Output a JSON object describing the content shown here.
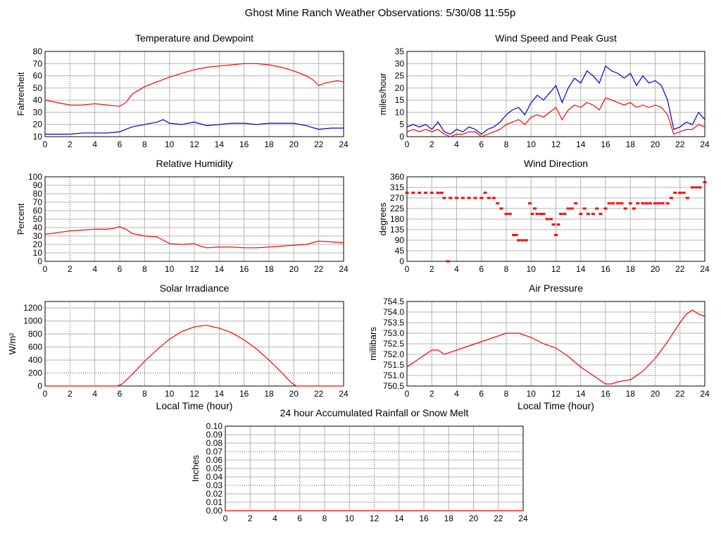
{
  "page": {
    "title": "Ghost Mine Ranch Weather Observations: 5/30/08 11:55p"
  },
  "chart_data": [
    {
      "id": "temp",
      "type": "line",
      "title": "Temperature and Dewpoint",
      "ylabel": "Fahrenheit",
      "xlabel": "",
      "xlim": [
        0,
        24
      ],
      "ylim": [
        10,
        80
      ],
      "xticks": [
        0,
        2,
        4,
        6,
        8,
        10,
        12,
        14,
        16,
        18,
        20,
        22,
        24
      ],
      "yticks": [
        10,
        20,
        30,
        40,
        50,
        60,
        70,
        80
      ],
      "grid": true,
      "series": [
        {
          "color": "#ff0000",
          "x": [
            0,
            1,
            2,
            3,
            4,
            5,
            6,
            6.5,
            7,
            7.5,
            8,
            9,
            10,
            11,
            12,
            13,
            14,
            15,
            16,
            17,
            18,
            19,
            20,
            21,
            21.5,
            22,
            22.5,
            23,
            23.5,
            24
          ],
          "y": [
            40,
            38,
            36,
            36,
            37,
            36,
            35,
            38,
            45,
            48,
            51,
            55,
            59,
            62,
            65,
            67,
            68,
            69,
            70,
            70,
            69,
            67,
            64,
            60,
            57,
            52,
            54,
            55,
            56,
            55
          ]
        },
        {
          "color": "#0000cc",
          "x": [
            0,
            1,
            2,
            3,
            4,
            5,
            6,
            6.5,
            7,
            8,
            9,
            9.5,
            10,
            11,
            12,
            13,
            14,
            15,
            16,
            17,
            18,
            19,
            20,
            21,
            22,
            23,
            24
          ],
          "y": [
            12,
            12,
            12,
            13,
            13,
            13,
            14,
            16,
            18,
            20,
            22,
            24,
            21,
            20,
            22,
            19,
            20,
            21,
            21,
            20,
            21,
            21,
            21,
            19,
            16,
            17,
            17
          ]
        }
      ]
    },
    {
      "id": "wind",
      "type": "line",
      "title": "Wind Speed and Peak Gust",
      "ylabel": "miles/hour",
      "xlabel": "",
      "xlim": [
        0,
        24
      ],
      "ylim": [
        0,
        35
      ],
      "xticks": [
        0,
        2,
        4,
        6,
        8,
        10,
        12,
        14,
        16,
        18,
        20,
        22,
        24
      ],
      "yticks": [
        0,
        5,
        10,
        15,
        20,
        25,
        30,
        35
      ],
      "grid": true,
      "series": [
        {
          "color": "#0000cc",
          "x": [
            0,
            0.5,
            1,
            1.5,
            2,
            2.5,
            3,
            3.5,
            4,
            4.5,
            5,
            5.5,
            6,
            6.5,
            7,
            7.5,
            8,
            8.5,
            9,
            9.5,
            10,
            10.5,
            11,
            11.5,
            12,
            12.5,
            13,
            13.5,
            14,
            14.5,
            15,
            15.5,
            16,
            16.5,
            17,
            17.5,
            18,
            18.5,
            19,
            19.5,
            20,
            20.5,
            21,
            21.5,
            22,
            22.5,
            23,
            23.5,
            24
          ],
          "y": [
            4,
            5,
            4,
            5,
            3,
            6,
            2,
            1,
            3,
            2,
            4,
            3,
            1,
            3,
            4,
            6,
            9,
            11,
            12,
            9,
            14,
            17,
            15,
            18,
            21,
            14,
            20,
            24,
            22,
            27,
            25,
            22,
            29,
            27,
            26,
            24,
            26,
            21,
            25,
            22,
            23,
            21,
            15,
            3,
            4,
            6,
            5,
            10,
            7
          ]
        },
        {
          "color": "#ff0000",
          "x": [
            0,
            0.5,
            1,
            1.5,
            2,
            2.5,
            3,
            3.5,
            4,
            4.5,
            5,
            5.5,
            6,
            6.5,
            7,
            7.5,
            8,
            8.5,
            9,
            9.5,
            10,
            10.5,
            11,
            11.5,
            12,
            12.5,
            13,
            13.5,
            14,
            14.5,
            15,
            15.5,
            16,
            16.5,
            17,
            17.5,
            18,
            18.5,
            19,
            19.5,
            20,
            20.5,
            21,
            21.5,
            22,
            22.5,
            23,
            23.5,
            24
          ],
          "y": [
            2,
            3,
            2,
            3,
            2,
            3,
            1,
            0,
            1,
            1,
            2,
            2,
            0,
            1,
            2,
            3,
            5,
            6,
            7,
            5,
            8,
            9,
            8,
            10,
            12,
            7,
            11,
            13,
            12,
            14,
            13,
            11,
            16,
            15,
            14,
            13,
            14,
            12,
            13,
            12,
            13,
            12,
            9,
            1,
            2,
            3,
            3,
            5,
            4
          ]
        }
      ]
    },
    {
      "id": "rh",
      "type": "line",
      "title": "Relative Humidity",
      "ylabel": "Percent",
      "xlabel": "",
      "xlim": [
        0,
        24
      ],
      "ylim": [
        0,
        100
      ],
      "xticks": [
        0,
        2,
        4,
        6,
        8,
        10,
        12,
        14,
        16,
        18,
        20,
        22,
        24
      ],
      "yticks": [
        0,
        10,
        20,
        30,
        40,
        50,
        60,
        70,
        80,
        90,
        100
      ],
      "grid": true,
      "series": [
        {
          "color": "#ff0000",
          "x": [
            0,
            1,
            2,
            3,
            4,
            5,
            5.5,
            6,
            6.5,
            7,
            8,
            9,
            9.5,
            10,
            11,
            12,
            12.5,
            13,
            14,
            15,
            16,
            17,
            18,
            19,
            20,
            21,
            22,
            23,
            24
          ],
          "y": [
            32,
            34,
            36,
            37,
            38,
            38,
            39,
            41,
            38,
            33,
            30,
            29,
            25,
            21,
            20,
            21,
            18,
            16,
            17,
            17,
            16,
            16,
            17,
            18,
            19,
            20,
            24,
            23,
            22
          ]
        }
      ]
    },
    {
      "id": "dir",
      "type": "scatter",
      "title": "Wind Direction",
      "ylabel": "degrees",
      "xlabel": "",
      "xlim": [
        0,
        24
      ],
      "ylim": [
        0,
        360
      ],
      "xticks": [
        0,
        2,
        4,
        6,
        8,
        10,
        12,
        14,
        16,
        18,
        20,
        22,
        24
      ],
      "yticks": [
        0,
        45,
        90,
        135,
        180,
        225,
        270,
        315,
        360
      ],
      "grid": true,
      "series": [
        {
          "color": "#ff0000",
          "x": [
            0,
            0.5,
            1,
            1.5,
            2,
            2.5,
            2.8,
            3,
            3.3,
            3.5,
            4,
            4.5,
            5,
            5.5,
            6,
            6.3,
            6.6,
            7,
            7.3,
            7.6,
            8,
            8.3,
            8.6,
            8.8,
            9,
            9.3,
            9.6,
            9.9,
            10.1,
            10.3,
            10.5,
            10.8,
            11,
            11.3,
            11.6,
            11.8,
            12,
            12.2,
            12.4,
            12.7,
            13,
            13.3,
            13.6,
            14,
            14.3,
            14.6,
            15,
            15.3,
            15.6,
            16,
            16.3,
            16.6,
            17,
            17.3,
            17.6,
            18,
            18.3,
            18.6,
            19,
            19.3,
            19.6,
            20,
            20.3,
            20.6,
            21,
            21.3,
            21.6,
            22,
            22.3,
            22.6,
            23,
            23.3,
            23.6,
            24
          ],
          "y": [
            292,
            292,
            292,
            292,
            292,
            292,
            292,
            270,
            0,
            270,
            270,
            270,
            270,
            270,
            270,
            292,
            270,
            270,
            247,
            225,
            202,
            202,
            112,
            112,
            90,
            90,
            90,
            247,
            202,
            225,
            202,
            202,
            202,
            180,
            180,
            157,
            112,
            157,
            202,
            202,
            225,
            225,
            247,
            202,
            225,
            202,
            202,
            225,
            202,
            225,
            247,
            247,
            247,
            247,
            225,
            247,
            225,
            247,
            247,
            247,
            247,
            247,
            247,
            247,
            247,
            270,
            292,
            292,
            292,
            270,
            315,
            315,
            315,
            337
          ]
        }
      ]
    },
    {
      "id": "solar",
      "type": "line",
      "title": "Solar Irradiance",
      "ylabel": "W/m²",
      "xlabel": "Local Time (hour)",
      "xlim": [
        0,
        24
      ],
      "ylim": [
        0,
        1300
      ],
      "xticks": [
        0,
        2,
        4,
        6,
        8,
        10,
        12,
        14,
        16,
        18,
        20,
        22,
        24
      ],
      "yticks": [
        0,
        200,
        400,
        600,
        800,
        1000,
        1200
      ],
      "grid": true,
      "series": [
        {
          "color": "#ff0000",
          "x": [
            0,
            2,
            4,
            5.8,
            6.2,
            7,
            8,
            9,
            10,
            11,
            12,
            13,
            13.5,
            14,
            15,
            16,
            17,
            18,
            19,
            19.8,
            20.2,
            22,
            24
          ],
          "y": [
            0,
            0,
            0,
            0,
            30,
            180,
            380,
            560,
            720,
            840,
            910,
            935,
            910,
            890,
            820,
            710,
            570,
            400,
            210,
            50,
            0,
            0,
            0
          ]
        }
      ]
    },
    {
      "id": "press",
      "type": "line",
      "title": "Air Pressure",
      "ylabel": "millibars",
      "xlabel": "Local Time (hour)",
      "xlim": [
        0,
        24
      ],
      "ylim": [
        750.5,
        754.5
      ],
      "xticks": [
        0,
        2,
        4,
        6,
        8,
        10,
        12,
        14,
        16,
        18,
        20,
        22,
        24
      ],
      "yticks": [
        750.5,
        751.0,
        751.5,
        752.0,
        752.5,
        753.0,
        753.5,
        754.0,
        754.5
      ],
      "grid": true,
      "series": [
        {
          "color": "#ff0000",
          "x": [
            0,
            1,
            2,
            2.5,
            3,
            4,
            5,
            6,
            7,
            8,
            9,
            10,
            11,
            12,
            13,
            14,
            15,
            15.5,
            16,
            16.5,
            17,
            18,
            19,
            20,
            21,
            22,
            22.5,
            23,
            23.5,
            24
          ],
          "y": [
            751.4,
            751.8,
            752.2,
            752.2,
            752.0,
            752.2,
            752.4,
            752.6,
            752.8,
            753.0,
            753.0,
            752.8,
            752.5,
            752.3,
            751.9,
            751.4,
            751.0,
            750.8,
            750.6,
            750.6,
            750.7,
            750.8,
            751.2,
            751.8,
            752.6,
            753.5,
            753.9,
            754.1,
            753.9,
            753.8
          ]
        }
      ]
    },
    {
      "id": "rain",
      "type": "line",
      "title": "24 hour Accumulated Rainfall or Snow Melt",
      "ylabel": "Inches",
      "xlabel": "",
      "xlim": [
        0,
        24
      ],
      "ylim": [
        0,
        0.1
      ],
      "xticks": [
        0,
        2,
        4,
        6,
        8,
        10,
        12,
        14,
        16,
        18,
        20,
        22,
        24
      ],
      "yticks": [
        0.0,
        0.01,
        0.02,
        0.03,
        0.04,
        0.05,
        0.06,
        0.07,
        0.08,
        0.09,
        0.1
      ],
      "ytick_labels": [
        "0.00",
        "0.01",
        "0.02",
        "0.03",
        "0.04",
        "0.05",
        "0.06",
        "0.07",
        "0.08",
        "0.09",
        "0.10"
      ],
      "grid": true,
      "series": [
        {
          "color": "#ff0000",
          "x": [
            0,
            24
          ],
          "y": [
            0,
            0
          ]
        }
      ]
    }
  ]
}
